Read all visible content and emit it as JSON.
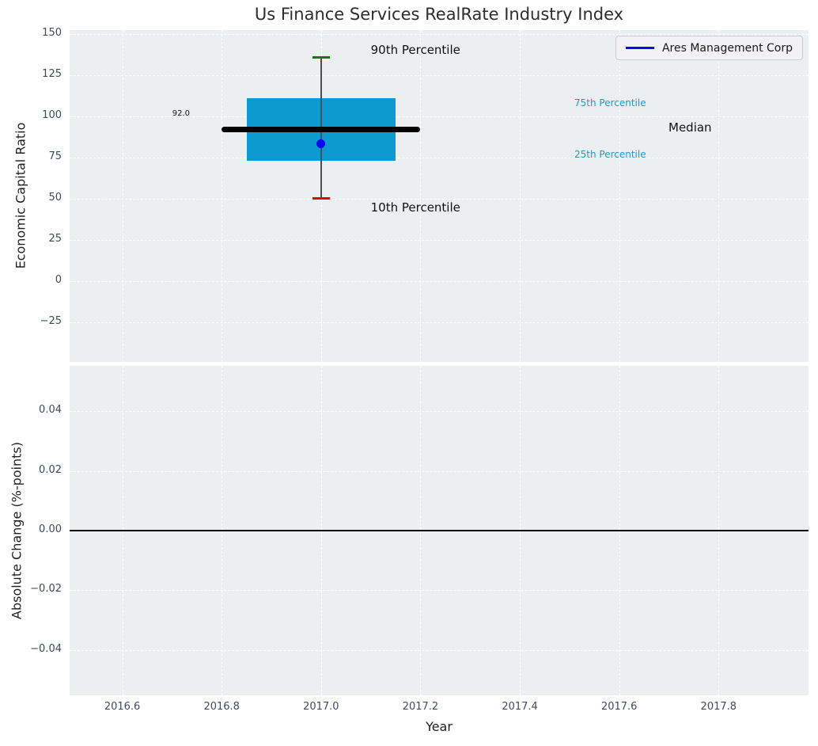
{
  "page": {
    "title": "Us Finance Services RealRate Industry Index",
    "background": "#ffffff",
    "plot_background": "#ebeff0",
    "grid_color": "#ffffff",
    "tick_color": "#3e4a5c",
    "text_color": "#1f1f1f"
  },
  "legend": {
    "label": "Ares Management Corp",
    "line_color": "#0909e8",
    "position": "top-right"
  },
  "chart_data": [
    {
      "type": "box",
      "panel": "economic-capital-ratio",
      "ylabel": "Economic Capital Ratio",
      "ylim": [
        -49.1,
        152.2
      ],
      "xlim": [
        2016.494,
        2017.981
      ],
      "grid": true,
      "yticks": {
        "values": [
          150,
          125,
          100,
          75,
          50,
          25,
          0,
          -25
        ],
        "labels": [
          "150",
          "125",
          "100",
          "75",
          "50",
          "25",
          "0",
          "−25"
        ]
      },
      "box": {
        "x_center": 2017.0,
        "x_left": 2016.85,
        "x_right": 2017.15,
        "p10": 50.0,
        "p25": 72.7,
        "median": 92.0,
        "p75": 111.0,
        "p90": 135.5,
        "median_line_span": [
          2016.8,
          2017.2
        ],
        "fill_color": "#0c9ad1",
        "median_color": "#000000",
        "whisker_color": "#4d4d4d",
        "p90_cap_color": "#008000",
        "p10_cap_color": "#e60000"
      },
      "company_point": {
        "name": "Ares Management Corp",
        "x": 2017.0,
        "y": 83.3,
        "color": "#0505f0"
      },
      "annotations": {
        "p90_label": "90th Percentile",
        "p75_label": "75th Percentile",
        "median_label": "Median",
        "median_value_label": "92.0",
        "p25_label": "25th Percentile",
        "p10_label": "10th Percentile",
        "percentile_label_color": "#1a9cca"
      }
    },
    {
      "type": "line",
      "panel": "absolute-change",
      "ylabel": "Absolute Change (%-points)",
      "xlabel": "Year",
      "ylim": [
        -0.0551,
        0.0551
      ],
      "grid": true,
      "yticks": {
        "values": [
          0.04,
          0.02,
          0,
          -0.02,
          -0.04
        ],
        "labels": [
          "0.04",
          "0.02",
          "0.00",
          "−0.02",
          "−0.04"
        ]
      },
      "xticks": {
        "values": [
          2016.6,
          2016.8,
          2017.0,
          2017.2,
          2017.4,
          2017.6,
          2017.8
        ],
        "labels": [
          "2016.6",
          "2016.8",
          "2017.0",
          "2017.2",
          "2017.4",
          "2017.6",
          "2017.8"
        ]
      },
      "zero_line": {
        "y": 0.0,
        "color": "#000000"
      }
    }
  ]
}
